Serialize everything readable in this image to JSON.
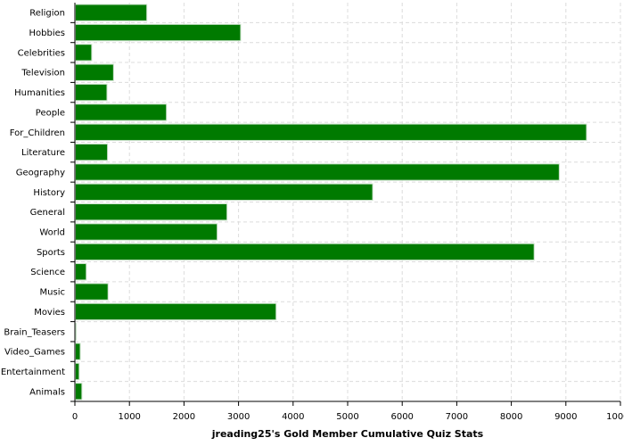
{
  "chart_data": {
    "type": "bar",
    "orientation": "horizontal",
    "title": "",
    "xlabel": "jreading25's Gold Member Cumulative Quiz Stats",
    "ylabel": "",
    "xlim": [
      0,
      10000
    ],
    "xticks": [
      0,
      1000,
      2000,
      3000,
      4000,
      5000,
      6000,
      7000,
      8000,
      9000,
      10000
    ],
    "grid": true,
    "legend": "none",
    "bar_color": "#007a00",
    "bar_edge_color": "#c8e0c8",
    "grid_color": "#dcdcdc",
    "categories": [
      "Religion",
      "Hobbies",
      "Celebrities",
      "Television",
      "Humanities",
      "People",
      "For_Children",
      "Literature",
      "Geography",
      "History",
      "General",
      "World",
      "Sports",
      "Science",
      "Music",
      "Movies",
      "Brain_Teasers",
      "Video_Games",
      "Entertainment",
      "Animals"
    ],
    "values": [
      1310,
      3030,
      300,
      700,
      580,
      1670,
      9370,
      590,
      8870,
      5450,
      2780,
      2600,
      8410,
      200,
      600,
      3680,
      15,
      90,
      70,
      120
    ]
  }
}
